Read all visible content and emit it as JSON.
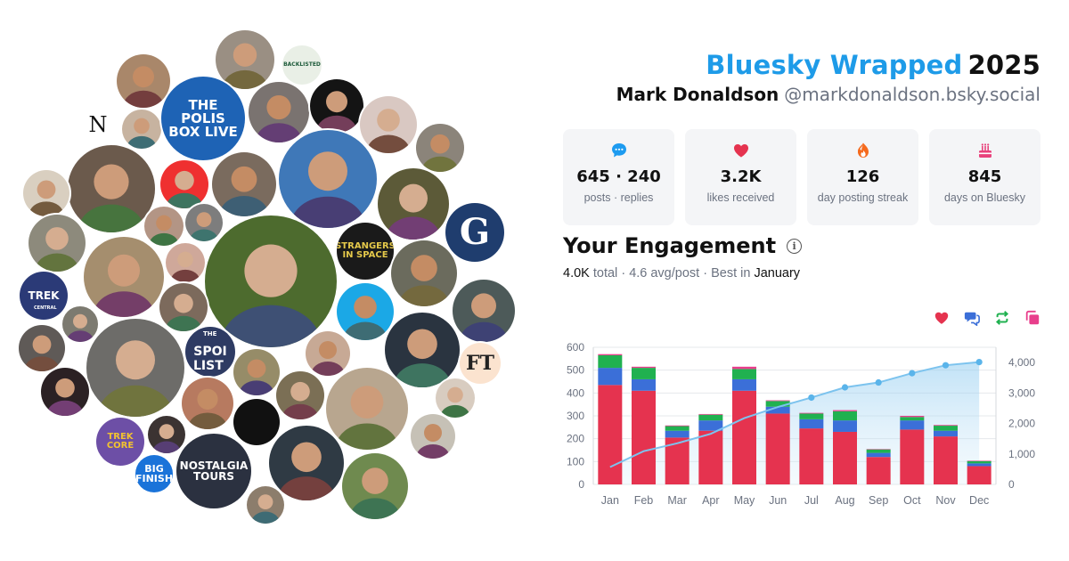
{
  "header": {
    "brand": "Bluesky Wrapped",
    "year": "2025",
    "display_name": "Mark Donaldson",
    "handle": "@markdonaldson.bsky.social"
  },
  "stats": [
    {
      "value": "645 · 240",
      "label": "posts · replies",
      "icon": "speech-bubble-icon"
    },
    {
      "value": "3.2K",
      "label": "likes received",
      "icon": "heart-icon"
    },
    {
      "value": "126",
      "label": "day posting streak",
      "icon": "flame-icon"
    },
    {
      "value": "845",
      "label": "days on Bluesky",
      "icon": "cake-icon"
    }
  ],
  "engagement": {
    "title": "Your Engagement",
    "total_value": "4.0K",
    "total_word": "total",
    "avg": "4.6 avg/post",
    "best_prefix": "Best in",
    "best_month": "January"
  },
  "legend": [
    {
      "name": "likes",
      "icon": "heart-icon",
      "color": "#e5334f"
    },
    {
      "name": "replies",
      "icon": "reply-icon",
      "color": "#3b6fd8"
    },
    {
      "name": "reposts",
      "icon": "repost-icon",
      "color": "#20b150"
    },
    {
      "name": "quotes",
      "icon": "quote-icon",
      "color": "#e83e8c"
    }
  ],
  "avatar_texts": {
    "polis": "THE POLIS BOX LIVE",
    "n_letter": "N",
    "strangers": "STRANGERS IN SPACE",
    "g_letter": "G",
    "trek": "TREK",
    "trek_sub": "CENTRAL",
    "spoilist_1": "THE",
    "spoilist_2": "SPOI",
    "spoilist_3": "LIST",
    "ft": "FT",
    "trekcore": "TREK CORE",
    "bigfinish": "BIG FINISH",
    "nostalgia": "NOSTALGIA TOURS",
    "backlisted": "BACKLISTED"
  },
  "chart_data": {
    "type": "bar",
    "stacked": true,
    "categories": [
      "Jan",
      "Feb",
      "Mar",
      "Apr",
      "May",
      "Jun",
      "Jul",
      "Aug",
      "Sep",
      "Oct",
      "Nov",
      "Dec"
    ],
    "series": [
      {
        "name": "likes",
        "color": "#e5334f",
        "values": [
          435,
          410,
          205,
          235,
          410,
          310,
          245,
          230,
          120,
          240,
          210,
          80
        ]
      },
      {
        "name": "replies",
        "color": "#3b6fd8",
        "values": [
          75,
          50,
          30,
          45,
          50,
          30,
          40,
          50,
          18,
          40,
          25,
          12
        ]
      },
      {
        "name": "reposts",
        "color": "#20b150",
        "values": [
          55,
          50,
          20,
          25,
          45,
          25,
          25,
          40,
          15,
          15,
          22,
          10
        ]
      },
      {
        "name": "quotes",
        "color": "#e83e8c",
        "values": [
          5,
          5,
          3,
          3,
          10,
          3,
          3,
          5,
          2,
          5,
          3,
          2
        ]
      }
    ],
    "cumulative": {
      "values": [
        570,
        1090,
        1350,
        1660,
        2175,
        2540,
        2850,
        3185,
        3345,
        3650,
        3910,
        4015
      ]
    },
    "ylim_left": [
      0,
      600
    ],
    "yticks_left": [
      "0",
      "100",
      "200",
      "300",
      "400",
      "500",
      "600"
    ],
    "ylim_right": [
      0,
      4500
    ],
    "yticks_right": [
      "0",
      "1,000",
      "2,000",
      "3,000",
      "4,000"
    ],
    "grid": true
  }
}
